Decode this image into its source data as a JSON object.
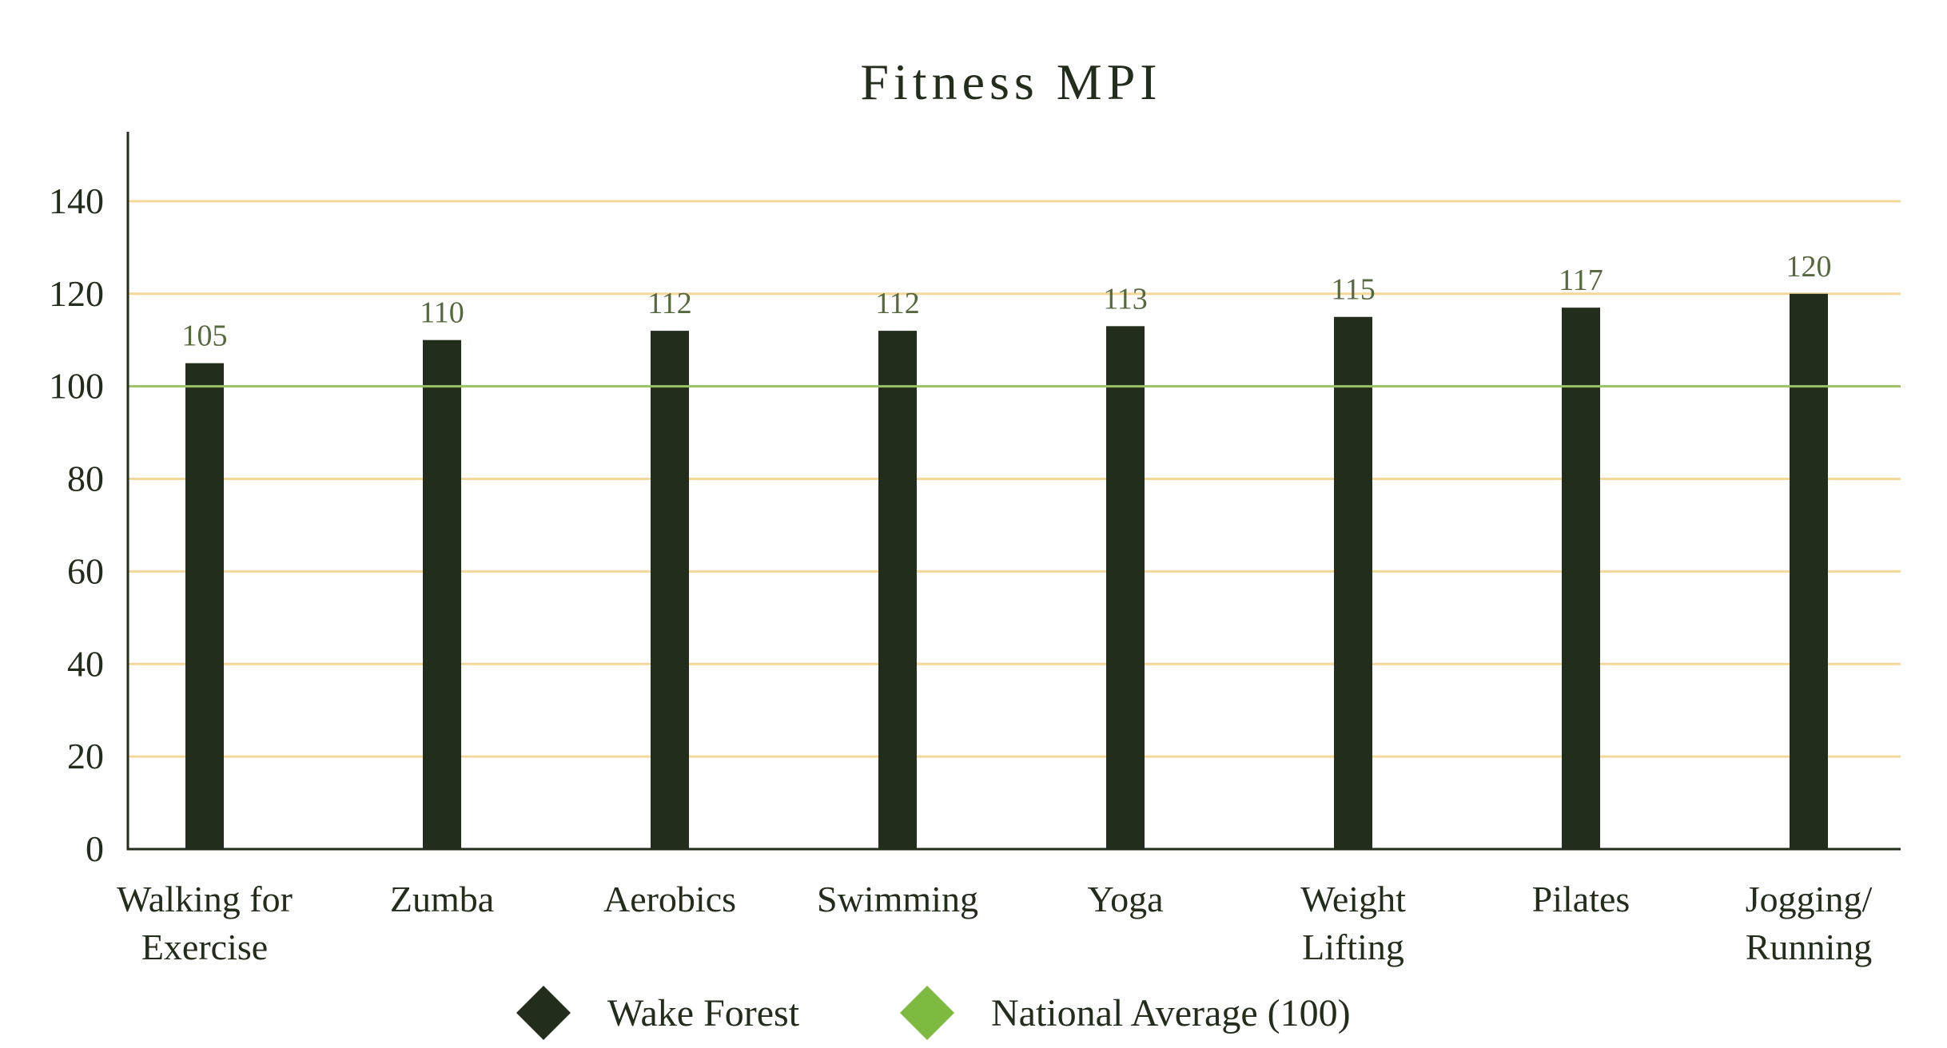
{
  "chart_data": {
    "type": "bar",
    "title": "Fitness MPI",
    "xlabel": "",
    "ylabel": "",
    "categories": [
      [
        "Walking for",
        "Exercise"
      ],
      [
        "Zumba"
      ],
      [
        "Aerobics"
      ],
      [
        "Swimming"
      ],
      [
        "Yoga"
      ],
      [
        "Weight",
        "Lifting"
      ],
      [
        "Pilates"
      ],
      [
        "Jogging/",
        "Running"
      ]
    ],
    "series": [
      {
        "name": "Wake Forest",
        "values": [
          105,
          110,
          112,
          112,
          113,
          115,
          117,
          120
        ],
        "color": "#232d1b"
      }
    ],
    "reference_line": {
      "name": "National Average (100)",
      "value": 100,
      "color": "#7dba3f",
      "line_color": "#9ac163"
    },
    "ylim": [
      0,
      155
    ],
    "yticks": [
      0,
      20,
      40,
      60,
      80,
      100,
      120,
      140
    ],
    "grid": true,
    "legend_position": "bottom-center",
    "colors": {
      "title": "#232d1b",
      "axis": "#232d1b",
      "tick_label": "#232d1b",
      "value_label": "#56693e",
      "gridline": "#f3d89a"
    }
  }
}
